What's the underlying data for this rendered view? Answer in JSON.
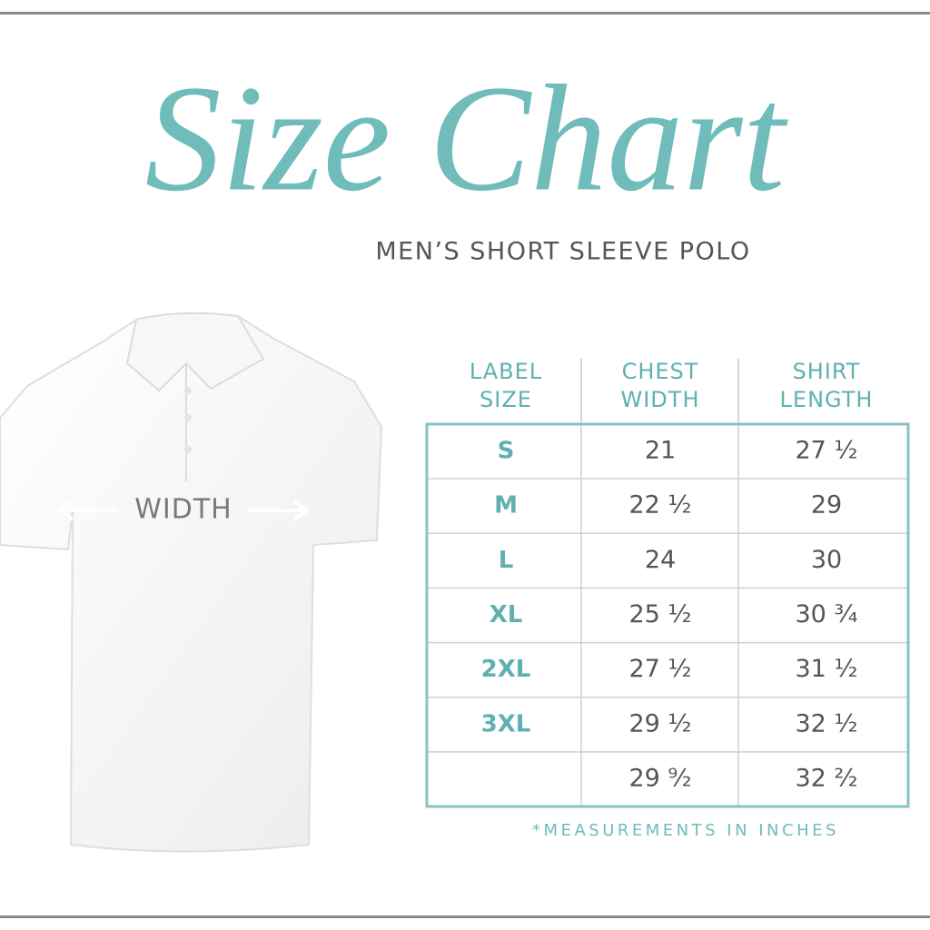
{
  "header": {
    "title": "Size Chart",
    "subtitle": "MEN’S SHORT SLEEVE POLO"
  },
  "garment": {
    "measure_label": "WIDTH"
  },
  "table": {
    "columns": [
      [
        "LABEL",
        "SIZE"
      ],
      [
        "CHEST",
        "WIDTH"
      ],
      [
        "SHIRT",
        "LENGTH"
      ]
    ],
    "rows": [
      [
        "S",
        "21",
        "27 ½"
      ],
      [
        "M",
        "22 ½",
        "29"
      ],
      [
        "L",
        "24",
        "30"
      ],
      [
        "XL",
        "25 ½",
        "30 ¾"
      ],
      [
        "2XL",
        "27 ½",
        "31 ½"
      ],
      [
        "3XL",
        "29 ½",
        "32 ½"
      ],
      [
        null,
        "29 ⁹⁄₂",
        "32 ²⁄₂"
      ]
    ]
  },
  "footnote": "*MEASUREMENTS IN INCHES"
}
